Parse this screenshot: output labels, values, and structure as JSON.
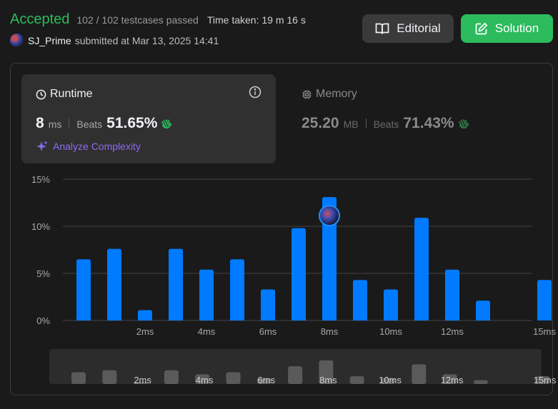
{
  "header": {
    "status": "Accepted",
    "testcases": "102 / 102 testcases passed",
    "time_taken": "Time taken: 19 m 16 s",
    "username": "SJ_Prime",
    "submitted": "submitted at Mar 13, 2025 14:41"
  },
  "buttons": {
    "editorial": "Editorial",
    "solution": "Solution"
  },
  "runtime": {
    "title": "Runtime",
    "value": "8",
    "unit": "ms",
    "beats_label": "Beats",
    "beats": "51.65%",
    "analyze": "Analyze Complexity"
  },
  "memory": {
    "title": "Memory",
    "value": "25.20",
    "unit": "MB",
    "beats_label": "Beats",
    "beats": "71.43%"
  },
  "colors": {
    "accepted": "#2cbb5d",
    "bar": "#007aff",
    "mini_bar": "#5a5a5a",
    "analyze": "#8a6cf0"
  },
  "icons": [
    "clock-icon",
    "info-icon",
    "chip-icon",
    "clapping-hands-icon",
    "sparkle-icon",
    "book-icon",
    "edit-icon"
  ],
  "chart_data": {
    "type": "bar",
    "yticks": [
      "15%",
      "10%",
      "5%",
      "0%"
    ],
    "ylim": [
      0,
      15
    ],
    "xticks": [
      {
        "x": 2,
        "label": "2ms"
      },
      {
        "x": 4,
        "label": "4ms"
      },
      {
        "x": 6,
        "label": "6ms"
      },
      {
        "x": 8,
        "label": "8ms"
      },
      {
        "x": 10,
        "label": "10ms"
      },
      {
        "x": 12,
        "label": "12ms"
      },
      {
        "x": 15,
        "label": "15ms"
      }
    ],
    "bars": [
      {
        "x": 0,
        "value": 6.5
      },
      {
        "x": 1,
        "value": 7.6
      },
      {
        "x": 2,
        "value": 1.1
      },
      {
        "x": 3,
        "value": 7.6
      },
      {
        "x": 4,
        "value": 5.4
      },
      {
        "x": 5,
        "value": 6.5
      },
      {
        "x": 6,
        "value": 3.3
      },
      {
        "x": 7,
        "value": 9.8
      },
      {
        "x": 8,
        "value": 13.1
      },
      {
        "x": 9,
        "value": 4.3
      },
      {
        "x": 10,
        "value": 3.3
      },
      {
        "x": 11,
        "value": 10.9
      },
      {
        "x": 12,
        "value": 5.4
      },
      {
        "x": 13,
        "value": 2.1
      },
      {
        "x": 15,
        "value": 4.3
      }
    ],
    "highlight_x": 8,
    "grid": true
  }
}
